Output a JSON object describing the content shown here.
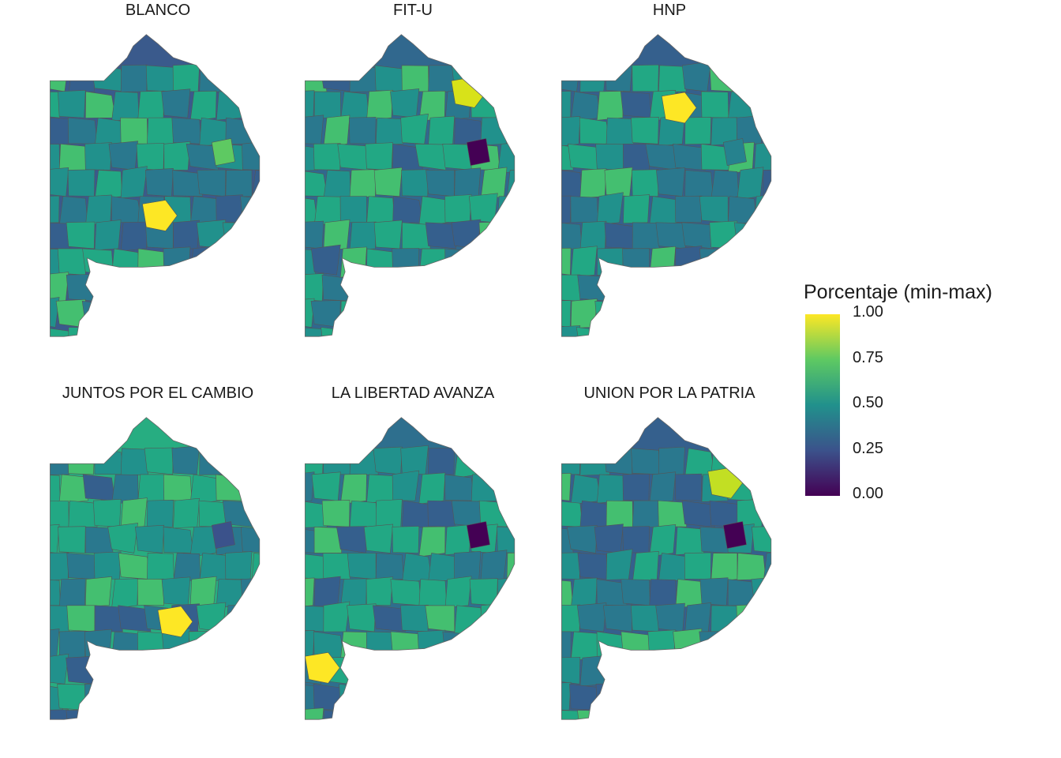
{
  "panels": [
    {
      "title": "BLANCO",
      "base": "#3a5a8c",
      "hot": "#fde725",
      "accent": "#5ec962"
    },
    {
      "title": "FIT-U",
      "base": "#31688e",
      "hot": "#d8e219",
      "accent": "#440154"
    },
    {
      "title": "HNP",
      "base": "#35608d",
      "hot": "#fde725",
      "accent": "#26828e"
    },
    {
      "title": "JUNTOS POR EL CAMBIO",
      "base": "#27ad81",
      "hot": "#fde725",
      "accent": "#3b528b"
    },
    {
      "title": "LA LIBERTAD AVANZA",
      "base": "#2e6f8e",
      "hot": "#fde725",
      "accent": "#440154"
    },
    {
      "title": "UNION POR LA PATRIA",
      "base": "#35608d",
      "hot": "#c2df23",
      "accent": "#440154"
    }
  ],
  "legend": {
    "title": "Porcentaje (min-max)",
    "ticks": [
      "1.00",
      "0.75",
      "0.50",
      "0.25",
      "0.00"
    ],
    "colors": [
      "#440154",
      "#3b528b",
      "#21918c",
      "#5ec962",
      "#fde725"
    ]
  }
}
